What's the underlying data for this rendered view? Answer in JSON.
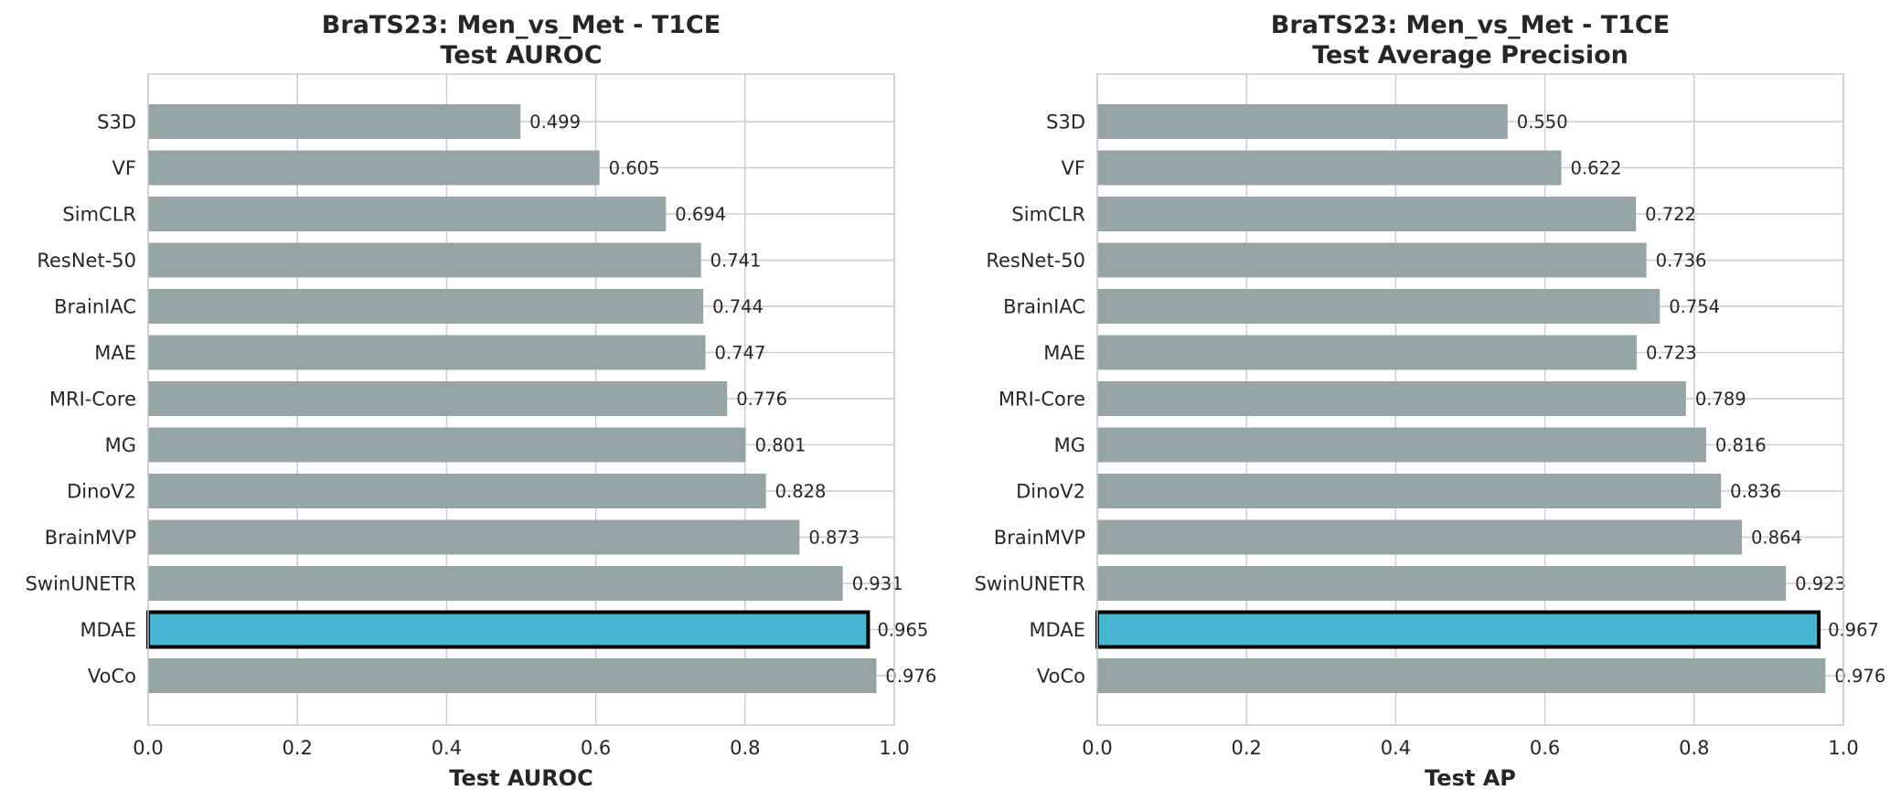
{
  "chart_data": [
    {
      "type": "bar",
      "orientation": "horizontal",
      "title": "BraTS23: Men_vs_Met - T1CE",
      "subtitle": "Test AUROC",
      "xlabel": "Test AUROC",
      "xlim": [
        0,
        1.0
      ],
      "xticks": [
        "0.0",
        "0.2",
        "0.4",
        "0.6",
        "0.8",
        "1.0"
      ],
      "grid": true,
      "categories": [
        "S3D",
        "VF",
        "SimCLR",
        "ResNet-50",
        "BrainIAC",
        "MAE",
        "MRI-Core",
        "MG",
        "DinoV2",
        "BrainMVP",
        "SwinUNETR",
        "MDAE",
        "VoCo"
      ],
      "values": [
        0.499,
        0.605,
        0.694,
        0.741,
        0.744,
        0.747,
        0.776,
        0.801,
        0.828,
        0.873,
        0.931,
        0.965,
        0.976
      ],
      "value_labels": [
        "0.499",
        "0.605",
        "0.694",
        "0.741",
        "0.744",
        "0.747",
        "0.776",
        "0.801",
        "0.828",
        "0.873",
        "0.931",
        "0.965",
        "0.976"
      ],
      "highlight": "MDAE"
    },
    {
      "type": "bar",
      "orientation": "horizontal",
      "title": "BraTS23: Men_vs_Met - T1CE",
      "subtitle": "Test Average Precision",
      "xlabel": "Test AP",
      "xlim": [
        0,
        1.0
      ],
      "xticks": [
        "0.0",
        "0.2",
        "0.4",
        "0.6",
        "0.8",
        "1.0"
      ],
      "grid": true,
      "categories": [
        "S3D",
        "VF",
        "SimCLR",
        "ResNet-50",
        "BrainIAC",
        "MAE",
        "MRI-Core",
        "MG",
        "DinoV2",
        "BrainMVP",
        "SwinUNETR",
        "MDAE",
        "VoCo"
      ],
      "values": [
        0.55,
        0.622,
        0.722,
        0.736,
        0.754,
        0.723,
        0.789,
        0.816,
        0.836,
        0.864,
        0.923,
        0.967,
        0.976
      ],
      "value_labels": [
        "0.550",
        "0.622",
        "0.722",
        "0.736",
        "0.754",
        "0.723",
        "0.789",
        "0.816",
        "0.836",
        "0.864",
        "0.923",
        "0.967",
        "0.976"
      ],
      "highlight": "MDAE"
    }
  ],
  "colors": {
    "bar": "#95a5a6",
    "highlight_bar": "#45b5d0",
    "highlight_edge": "#000000",
    "grid": "#cccccc",
    "text": "#262626"
  }
}
